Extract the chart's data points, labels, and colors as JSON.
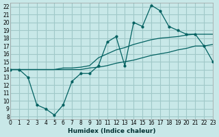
{
  "xlabel": "Humidex (Indice chaleur)",
  "ylabel": "",
  "bg_color": "#c8e8e8",
  "grid_color": "#a0c8c8",
  "line_color": "#006060",
  "xlim": [
    0,
    23
  ],
  "ylim": [
    8,
    22
  ],
  "xticks": [
    0,
    1,
    2,
    3,
    4,
    5,
    6,
    7,
    8,
    9,
    10,
    11,
    12,
    13,
    14,
    15,
    16,
    17,
    18,
    19,
    20,
    21,
    22,
    23
  ],
  "yticks": [
    8,
    9,
    10,
    11,
    12,
    13,
    14,
    15,
    16,
    17,
    18,
    19,
    20,
    21,
    22
  ],
  "hours": [
    0,
    1,
    2,
    3,
    4,
    5,
    6,
    7,
    8,
    9,
    10,
    11,
    12,
    13,
    14,
    15,
    16,
    17,
    18,
    19,
    20,
    21,
    22,
    23
  ],
  "main_y": [
    14,
    14,
    13,
    9.5,
    9,
    8.2,
    9.5,
    12.5,
    13.5,
    13.5,
    14.5,
    17.5,
    18.2,
    14.5,
    20,
    19.5,
    22.2,
    21.5,
    19.5,
    19,
    18.5,
    18.5,
    17,
    15.0
  ],
  "upper_y": [
    14,
    14,
    14,
    14,
    14,
    14,
    14.2,
    14.2,
    14.3,
    14.5,
    15.5,
    16.0,
    16.5,
    16.8,
    17.2,
    17.5,
    17.8,
    18.0,
    18.1,
    18.2,
    18.4,
    18.5,
    18.5,
    18.5
  ],
  "lower_y": [
    14,
    14,
    14,
    14,
    14,
    14,
    14,
    14,
    14,
    14.2,
    14.3,
    14.5,
    14.8,
    15.0,
    15.2,
    15.5,
    15.8,
    16.0,
    16.2,
    16.5,
    16.7,
    17.0,
    17.0,
    17.2
  ]
}
